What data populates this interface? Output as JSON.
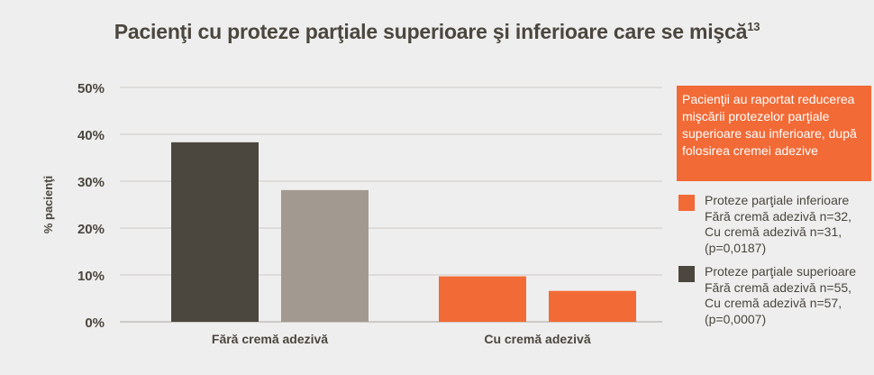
{
  "title": "Pacienţi cu proteze parţiale superioare şi inferioare care se mişcă",
  "title_sup": "13",
  "callout": "Pacienţii au raportat reducerea mişcării protezelor parţiale superioare sau inferioare, după folosirea cremei adezive",
  "legend": [
    {
      "color": "#f26a36",
      "lines": [
        "Proteze parţiale inferioare",
        "Fără cremă adezivă n=32,",
        "Cu cremă adezivă n=31,",
        "(p=0,0187)"
      ]
    },
    {
      "color": "#4b463e",
      "lines": [
        "Proteze parţiale superioare",
        "Fără cremă adezivă n=55,",
        "Cu cremă adezivă n=57,",
        "(p=0,0007)"
      ]
    }
  ],
  "chart_data": {
    "type": "bar",
    "ylabel": "% pacienţi",
    "yticks": [
      "0%",
      "10%",
      "20%",
      "30%",
      "40%",
      "50%"
    ],
    "ylim": [
      0,
      50
    ],
    "grid": true,
    "groups": [
      {
        "category": "Fără cremă adezivă",
        "bars": [
          {
            "value": 38.3,
            "color": "#4b463e"
          },
          {
            "value": 28.1,
            "color": "#a29a90"
          }
        ]
      },
      {
        "category": "Cu cremă adezivă",
        "bars": [
          {
            "value": 9.7,
            "color": "#f26a36"
          },
          {
            "value": 6.6,
            "color": "#f26a36"
          }
        ]
      }
    ]
  }
}
